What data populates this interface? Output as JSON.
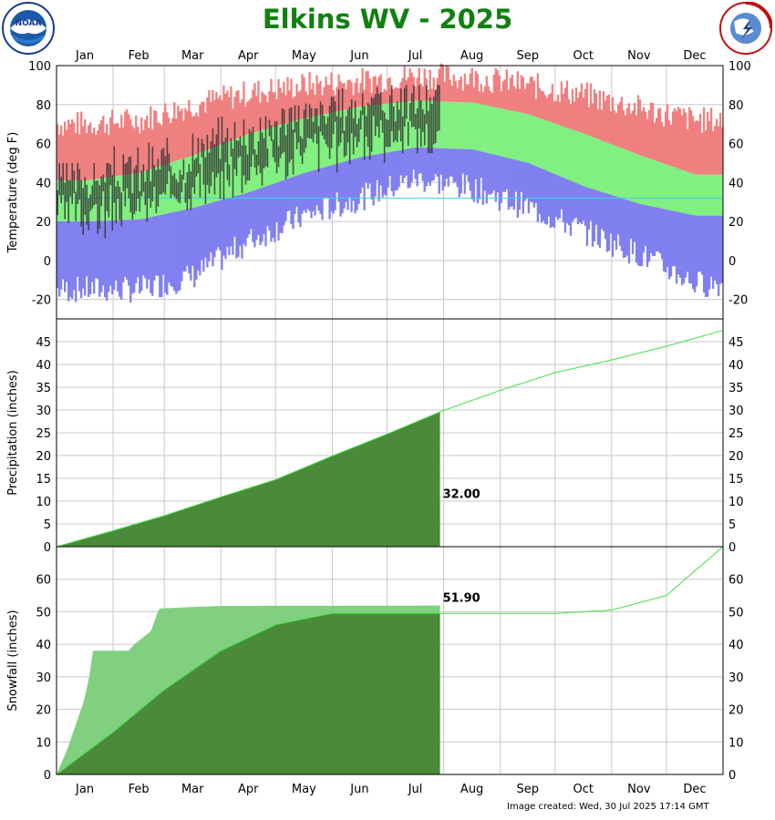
{
  "page": {
    "title": "Elkins WV - 2025",
    "footer": "Image created: Wed, 30 Jul 2025 17:14 GMT",
    "logos": {
      "left": "noaa-logo",
      "right": "nws-logo"
    },
    "colors": {
      "title": "#108010",
      "record": "#f08080",
      "normal": "#80f080",
      "low": "#8080f0",
      "observed": "#303030",
      "precip_obs": "#80d080",
      "precip_normal": "#4a8a3a",
      "line": "#40e040"
    }
  },
  "chart_data": [
    {
      "type": "bar",
      "panel": "temperature",
      "ylabel": "Temperature (deg F)",
      "ylim": [
        -30,
        100
      ],
      "yticks": [
        -20,
        0,
        20,
        40,
        60,
        80,
        100
      ],
      "months": [
        "Jan",
        "Feb",
        "Mar",
        "Apr",
        "May",
        "Jun",
        "Jul",
        "Aug",
        "Sep",
        "Oct",
        "Nov",
        "Dec"
      ],
      "grid": true,
      "series": [
        {
          "role": "record high (approx)",
          "values_by_month_mid": [
            70,
            72,
            80,
            86,
            90,
            92,
            95,
            94,
            90,
            85,
            78,
            72
          ]
        },
        {
          "role": "normal high",
          "values_by_month_mid": [
            41,
            45,
            54,
            65,
            73,
            79,
            82,
            81,
            75,
            65,
            54,
            44
          ]
        },
        {
          "role": "normal low",
          "values_by_month_mid": [
            20,
            21,
            27,
            35,
            45,
            53,
            58,
            57,
            50,
            38,
            29,
            23
          ]
        },
        {
          "role": "record low (approx)",
          "values_by_month_mid": [
            -15,
            -15,
            -8,
            10,
            23,
            32,
            42,
            37,
            27,
            15,
            3,
            -12
          ]
        }
      ],
      "observed_through": "Jul 30",
      "observed_monthly_range_approx": [
        {
          "month": "Jan",
          "high": 50,
          "low": -15
        },
        {
          "month": "Feb",
          "high": 65,
          "low": 0
        },
        {
          "month": "Mar",
          "high": 82,
          "low": 15
        },
        {
          "month": "Apr",
          "high": 84,
          "low": 24
        },
        {
          "month": "May",
          "high": 84,
          "low": 32
        },
        {
          "month": "Jun",
          "high": 89,
          "low": 44
        },
        {
          "month": "Jul",
          "high": 90,
          "low": 55
        }
      ]
    },
    {
      "type": "area",
      "panel": "precipitation",
      "ylabel": "Precipitation (inches)",
      "ylim": [
        0,
        50
      ],
      "yticks": [
        0,
        5,
        10,
        15,
        20,
        25,
        30,
        35,
        40,
        45
      ],
      "annotation": "32.00",
      "normal_cumulative_month_end": [
        3.5,
        6.8,
        10.9,
        14.7,
        19.9,
        24.7,
        29.9,
        34.3,
        38.2,
        41.0,
        44.0,
        47.5
      ],
      "observed_cumulative_points": [
        [
          0,
          0
        ],
        [
          1,
          1
        ],
        [
          2,
          2
        ],
        [
          3,
          3
        ],
        [
          4,
          7
        ],
        [
          5,
          8
        ],
        [
          6,
          9
        ],
        [
          7,
          10
        ],
        [
          8,
          11
        ],
        [
          9,
          14
        ],
        [
          10,
          17
        ],
        [
          11,
          20
        ],
        [
          12,
          23
        ],
        [
          13,
          26
        ],
        [
          14,
          29
        ],
        [
          15,
          31.5
        ],
        [
          16,
          32
        ]
      ]
    },
    {
      "type": "area",
      "panel": "snowfall",
      "ylabel": "Snowfall (inches)",
      "ylim": [
        0,
        70
      ],
      "yticks": [
        0,
        10,
        20,
        30,
        40,
        50,
        60
      ],
      "annotation": "51.90",
      "normal_cumulative_month_end": [
        13.0,
        26.0,
        38.0,
        46.0,
        49.5,
        49.5,
        49.5,
        49.5,
        49.5,
        50.5,
        55.0,
        70.0
      ],
      "observed_cumulative_points": [
        [
          0,
          0
        ],
        [
          0.2,
          8
        ],
        [
          0.4,
          18
        ],
        [
          0.5,
          23
        ],
        [
          0.6,
          31
        ],
        [
          0.65,
          38
        ],
        [
          1.3,
          38
        ],
        [
          1.4,
          40
        ],
        [
          1.7,
          44
        ],
        [
          1.8,
          49
        ],
        [
          1.85,
          51
        ],
        [
          2.5,
          51.5
        ],
        [
          3.0,
          51.8
        ],
        [
          7.0,
          51.9
        ]
      ]
    }
  ]
}
